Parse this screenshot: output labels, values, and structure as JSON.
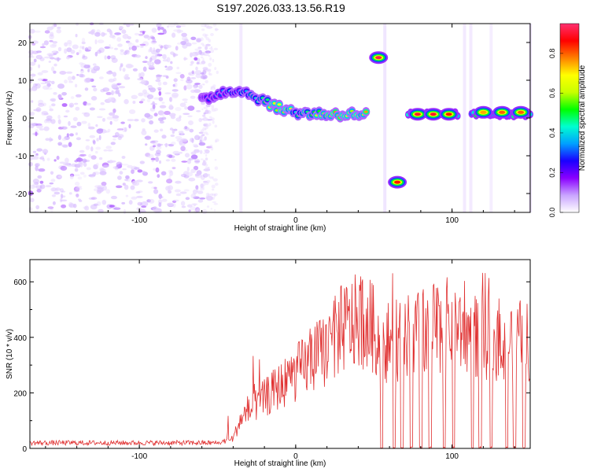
{
  "title": "S197.2026.033.13.56.R19",
  "chart_data": [
    {
      "type": "heatmap",
      "xlabel": "Height of straight line (km)",
      "ylabel": "Frequency (Hz)",
      "xlim": [
        -170,
        150
      ],
      "ylim": [
        -25,
        25
      ],
      "xticks": [
        -100,
        0,
        100
      ],
      "yticks": [
        -20,
        -10,
        0,
        10,
        20
      ],
      "colorbar": {
        "label": "Normalized spectral amplitude",
        "range": [
          0.0,
          0.95
        ],
        "ticks": [
          0.0,
          0.2,
          0.4,
          0.6,
          0.8
        ],
        "colormap": [
          "#ffffff",
          "#c9a4ff",
          "#8a00ff",
          "#1a00ff",
          "#00a0ff",
          "#00ffd0",
          "#00ff00",
          "#c8ff00",
          "#ffff00",
          "#ff8000",
          "#ff0000",
          "#ff3070"
        ]
      },
      "ridge": [
        {
          "x": -60,
          "f": 4.5,
          "a": 0.3
        },
        {
          "x": -50,
          "f": 6.5,
          "a": 0.35
        },
        {
          "x": -40,
          "f": 7.5,
          "a": 0.4
        },
        {
          "x": -30,
          "f": 6.5,
          "a": 0.45
        },
        {
          "x": -20,
          "f": 4.5,
          "a": 0.6
        },
        {
          "x": -10,
          "f": 2.5,
          "a": 0.75
        },
        {
          "x": 0,
          "f": 1.5,
          "a": 0.55
        },
        {
          "x": 10,
          "f": 1.2,
          "a": 0.6
        },
        {
          "x": 20,
          "f": 1.0,
          "a": 0.7
        },
        {
          "x": 30,
          "f": 1.0,
          "a": 0.8
        },
        {
          "x": 45,
          "f": 1.0,
          "a": 0.7
        }
      ],
      "blobs": [
        {
          "x": 53,
          "f": 16,
          "a": 0.92
        },
        {
          "x": 65,
          "f": -17,
          "a": 0.85
        },
        {
          "x": 78,
          "f": 1,
          "a": 0.9
        },
        {
          "x": 88,
          "f": 1,
          "a": 0.9
        },
        {
          "x": 98,
          "f": 1,
          "a": 0.85
        },
        {
          "x": 120,
          "f": 1.5,
          "a": 0.75
        },
        {
          "x": 132,
          "f": 1.5,
          "a": 0.8
        },
        {
          "x": 144,
          "f": 1.5,
          "a": 0.8
        }
      ]
    },
    {
      "type": "line",
      "xlabel": "Height of straight line (km)",
      "ylabel": "SNR (10 * v/v)",
      "xlim": [
        -170,
        150
      ],
      "ylim": [
        0,
        680
      ],
      "xticks": [
        -100,
        0,
        100
      ],
      "yticks": [
        0,
        200,
        400,
        600
      ],
      "color": "#e03030",
      "envelope": [
        {
          "x": -170,
          "y": 20
        },
        {
          "x": -50,
          "y": 20
        },
        {
          "x": -40,
          "y": 40
        },
        {
          "x": -35,
          "y": 120
        },
        {
          "x": -20,
          "y": 200
        },
        {
          "x": 0,
          "y": 300
        },
        {
          "x": 20,
          "y": 400
        },
        {
          "x": 30,
          "y": 480
        },
        {
          "x": 45,
          "y": 520
        },
        {
          "x": 55,
          "y": 420
        },
        {
          "x": 75,
          "y": 450
        },
        {
          "x": 100,
          "y": 500
        },
        {
          "x": 120,
          "y": 440
        },
        {
          "x": 150,
          "y": 430
        }
      ],
      "dropouts": [
        55,
        63,
        68,
        74,
        80,
        86,
        95,
        101,
        113,
        118,
        125,
        135,
        140,
        146
      ]
    }
  ]
}
